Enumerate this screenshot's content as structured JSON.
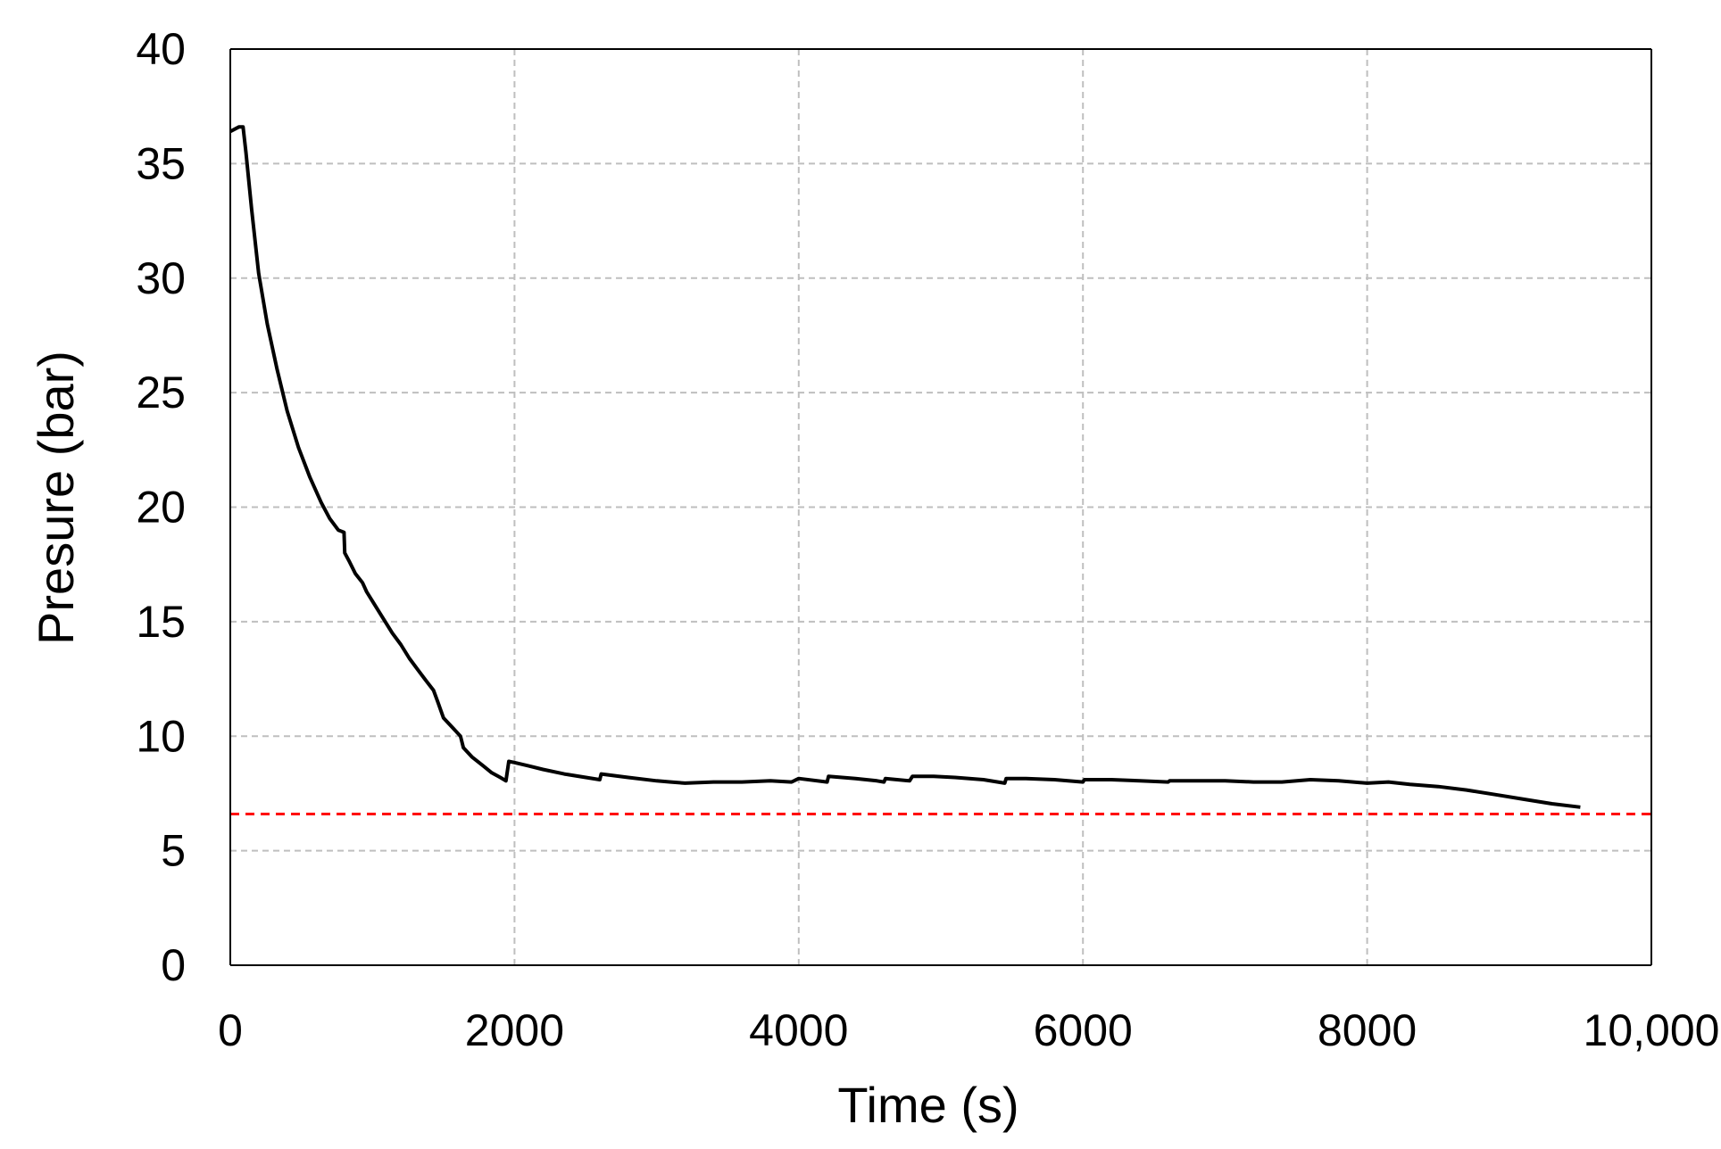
{
  "chart_data": {
    "type": "line",
    "title": "",
    "xlabel": "Time  (s)",
    "ylabel": "Presure  (bar)",
    "xlim": [
      0,
      10000
    ],
    "ylim": [
      0,
      40
    ],
    "xticks": [
      0,
      2000,
      4000,
      6000,
      8000,
      10000
    ],
    "xtick_labels": [
      "0",
      "2000",
      "4000",
      "6000",
      "8000",
      "10,000"
    ],
    "yticks": [
      0,
      5,
      10,
      15,
      20,
      25,
      30,
      35,
      40
    ],
    "ytick_labels": [
      "0",
      "5",
      "10",
      "15",
      "20",
      "25",
      "30",
      "35",
      "40"
    ],
    "grid": true,
    "legend": "none",
    "colors": {
      "series": "#000000",
      "threshold": "#ff0000",
      "grid": "#bfbfbf",
      "axis": "#000000"
    },
    "series": [
      {
        "color": "#000000",
        "points": [
          [
            0,
            36.4
          ],
          [
            60,
            36.6
          ],
          [
            90,
            36.6
          ],
          [
            110,
            35.5
          ],
          [
            150,
            33.0
          ],
          [
            200,
            30.2
          ],
          [
            260,
            28.0
          ],
          [
            330,
            26.0
          ],
          [
            400,
            24.2
          ],
          [
            480,
            22.6
          ],
          [
            560,
            21.3
          ],
          [
            640,
            20.2
          ],
          [
            700,
            19.5
          ],
          [
            760,
            19.0
          ],
          [
            800,
            18.9
          ],
          [
            805,
            18.0
          ],
          [
            840,
            17.6
          ],
          [
            880,
            17.1
          ],
          [
            930,
            16.7
          ],
          [
            960,
            16.3
          ],
          [
            1000,
            15.9
          ],
          [
            1070,
            15.2
          ],
          [
            1140,
            14.5
          ],
          [
            1200,
            14.0
          ],
          [
            1260,
            13.4
          ],
          [
            1320,
            12.9
          ],
          [
            1380,
            12.4
          ],
          [
            1430,
            12.0
          ],
          [
            1460,
            11.5
          ],
          [
            1500,
            10.8
          ],
          [
            1560,
            10.4
          ],
          [
            1620,
            10.0
          ],
          [
            1640,
            9.5
          ],
          [
            1700,
            9.1
          ],
          [
            1780,
            8.7
          ],
          [
            1840,
            8.4
          ],
          [
            1900,
            8.2
          ],
          [
            1940,
            8.05
          ],
          [
            1960,
            8.9
          ],
          [
            2000,
            8.85
          ],
          [
            2100,
            8.7
          ],
          [
            2200,
            8.55
          ],
          [
            2350,
            8.35
          ],
          [
            2600,
            8.1
          ],
          [
            2610,
            8.35
          ],
          [
            2800,
            8.2
          ],
          [
            3000,
            8.05
          ],
          [
            3100,
            8.0
          ],
          [
            3200,
            7.95
          ],
          [
            3400,
            8.0
          ],
          [
            3600,
            8.0
          ],
          [
            3800,
            8.05
          ],
          [
            3950,
            8.0
          ],
          [
            4000,
            8.15
          ],
          [
            4200,
            8.0
          ],
          [
            4210,
            8.25
          ],
          [
            4400,
            8.15
          ],
          [
            4550,
            8.05
          ],
          [
            4600,
            8.0
          ],
          [
            4610,
            8.15
          ],
          [
            4780,
            8.05
          ],
          [
            4800,
            8.25
          ],
          [
            4950,
            8.25
          ],
          [
            5100,
            8.2
          ],
          [
            5300,
            8.1
          ],
          [
            5450,
            7.95
          ],
          [
            5460,
            8.15
          ],
          [
            5600,
            8.15
          ],
          [
            5800,
            8.1
          ],
          [
            6000,
            8.0
          ],
          [
            6010,
            8.1
          ],
          [
            6200,
            8.1
          ],
          [
            6400,
            8.05
          ],
          [
            6600,
            8.0
          ],
          [
            6610,
            8.05
          ],
          [
            6800,
            8.05
          ],
          [
            7000,
            8.05
          ],
          [
            7200,
            8.0
          ],
          [
            7400,
            8.0
          ],
          [
            7600,
            8.1
          ],
          [
            7800,
            8.05
          ],
          [
            8000,
            7.95
          ],
          [
            8150,
            8.0
          ],
          [
            8300,
            7.9
          ],
          [
            8500,
            7.8
          ],
          [
            8700,
            7.65
          ],
          [
            8900,
            7.45
          ],
          [
            9100,
            7.25
          ],
          [
            9300,
            7.05
          ],
          [
            9500,
            6.9
          ]
        ]
      }
    ],
    "annotations": [
      {
        "type": "horizontal-line",
        "y": 6.6,
        "style": "dashed",
        "color": "#ff0000"
      }
    ]
  }
}
